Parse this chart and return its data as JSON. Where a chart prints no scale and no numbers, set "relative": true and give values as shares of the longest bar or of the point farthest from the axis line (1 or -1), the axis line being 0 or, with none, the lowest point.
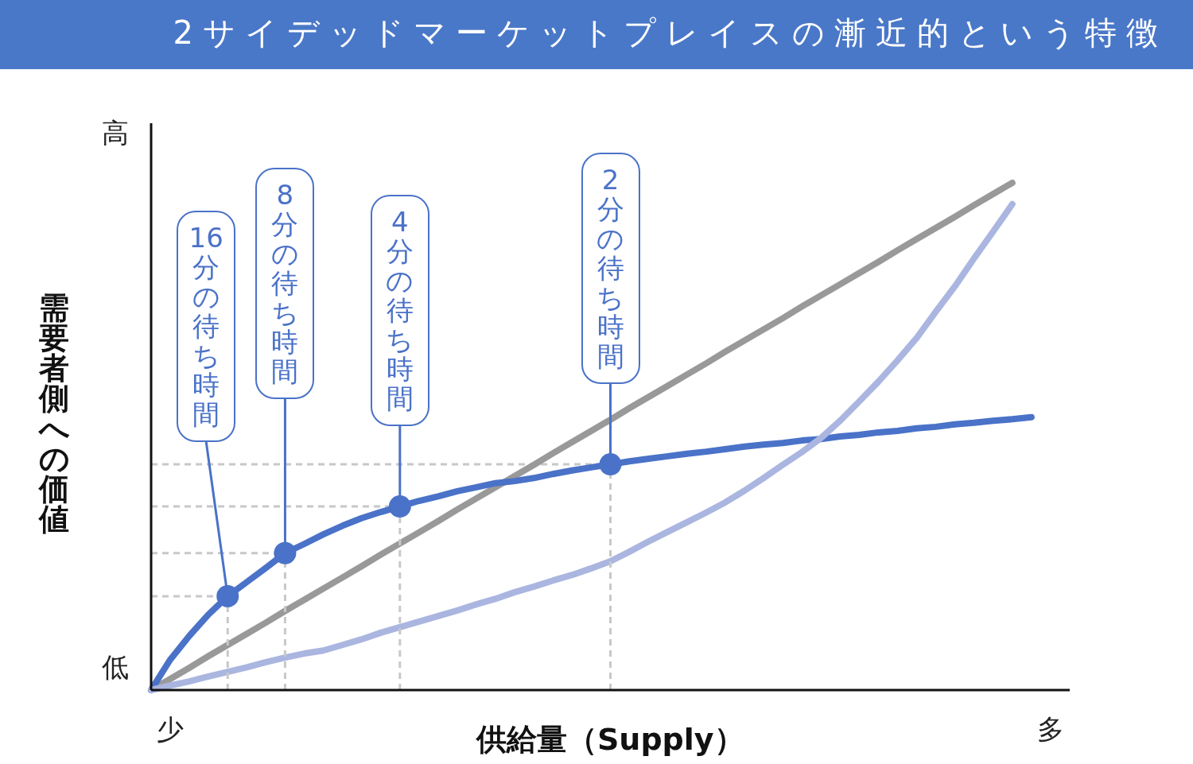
{
  "chart_data": {
    "type": "line",
    "relative": true,
    "title": "2サイデッドマーケットプレイスの漸近的という特徴",
    "xlabel": "供給量（Supply）",
    "ylabel": "需要者側への価値",
    "categories": [
      null,
      "少",
      null,
      null,
      null,
      null,
      null,
      null,
      null,
      null,
      null,
      null,
      null,
      null,
      null,
      null,
      null,
      null,
      null,
      null,
      null,
      null,
      null,
      null,
      null,
      null,
      null,
      null,
      null,
      null,
      null,
      null,
      null,
      null,
      null,
      null,
      null,
      null,
      null,
      null,
      null,
      null,
      null,
      null,
      null,
      null,
      null,
      "多",
      null
    ],
    "series": [
      {
        "color": "#999999",
        "values": [
          0,
          0.022,
          0.044,
          0.067,
          0.089,
          0.111,
          0.133,
          0.156,
          0.178,
          0.2,
          0.222,
          0.244,
          0.267,
          0.289,
          0.311,
          0.333,
          0.356,
          0.378,
          0.4,
          0.422,
          0.444,
          0.467,
          0.489,
          0.511,
          0.533,
          0.556,
          0.578,
          0.6,
          0.622,
          0.644,
          0.667,
          0.689,
          0.711,
          0.733,
          0.756,
          0.778,
          0.8,
          0.822,
          0.844,
          0.867,
          0.889,
          0.911,
          0.933,
          0.956,
          0.978,
          1,
          null,
          null,
          null
        ]
      },
      {
        "color": "#4a72c8",
        "values": [
          0,
          0.06,
          0.107,
          0.149,
          0.185,
          0.213,
          0.241,
          0.27,
          0.288,
          0.307,
          0.324,
          0.339,
          0.351,
          0.362,
          0.373,
          0.382,
          0.392,
          0.4,
          0.408,
          0.412,
          0.418,
          0.426,
          0.433,
          0.439,
          0.445,
          0.451,
          0.456,
          0.461,
          0.466,
          0.47,
          0.475,
          0.48,
          0.484,
          0.487,
          0.492,
          0.495,
          0.5,
          0.503,
          0.508,
          0.511,
          0.516,
          0.519,
          0.524,
          0.527,
          0.531,
          0.534,
          0.538,
          null,
          null
        ]
      },
      {
        "color": "#aab6e0",
        "values": [
          0,
          0.009,
          0.017,
          0.027,
          0.036,
          0.045,
          0.055,
          0.064,
          0.072,
          0.078,
          0.089,
          0.1,
          0.113,
          0.124,
          0.135,
          0.146,
          0.157,
          0.169,
          0.18,
          0.193,
          0.204,
          0.216,
          0.227,
          0.24,
          0.254,
          0.273,
          0.293,
          0.312,
          0.331,
          0.35,
          0.37,
          0.393,
          0.418,
          0.444,
          0.469,
          0.497,
          0.531,
          0.569,
          0.608,
          0.65,
          0.694,
          0.746,
          0.796,
          0.851,
          0.904,
          0.958,
          null,
          null,
          null
        ]
      },
      {
        "type": "scatter",
        "marker": "circle",
        "color": "#4a72c8",
        "values": [
          null,
          null,
          null,
          null,
          0.185,
          null,
          null,
          0.27,
          null,
          null,
          null,
          null,
          null,
          0.362,
          null,
          null,
          null,
          null,
          null,
          null,
          null,
          null,
          null,
          null,
          0.445,
          null,
          null,
          null,
          null,
          null,
          null,
          null,
          null,
          null,
          null,
          null,
          null,
          null,
          null,
          null,
          null,
          null,
          null,
          null,
          null,
          null,
          null,
          null,
          null
        ]
      }
    ],
    "ref_lines": [
      {
        "axis": "y",
        "value": 0.185,
        "color": "#c8c8c8",
        "line_style": "dashed"
      },
      {
        "axis": "y",
        "value": 0.27,
        "color": "#c8c8c8",
        "line_style": "dashed"
      },
      {
        "axis": "y",
        "value": 0.362,
        "color": "#c8c8c8",
        "line_style": "dashed"
      },
      {
        "axis": "y",
        "value": 0.445,
        "color": "#c8c8c8",
        "line_style": "dashed"
      }
    ],
    "annotations": [
      "16分の待ち時間",
      "8分の待ち時間",
      "4分の待ち時間",
      "2分の待ち時間",
      "低",
      "高"
    ]
  }
}
